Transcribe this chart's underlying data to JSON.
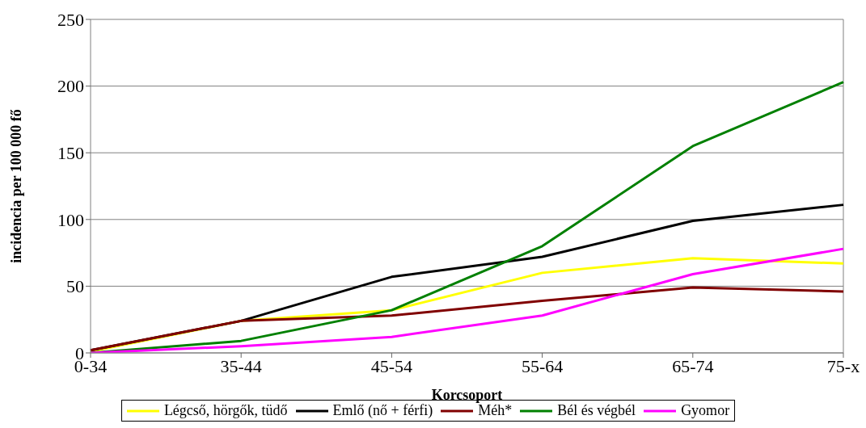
{
  "chart_data": {
    "type": "line",
    "xlabel": "Korcsoport",
    "ylabel": "incidencia per 100 000 fő",
    "categories": [
      "0-34",
      "35-44",
      "45-54",
      "55-64",
      "65-74",
      "75-x"
    ],
    "ylim": [
      0,
      250
    ],
    "yticks": [
      0,
      50,
      100,
      150,
      200,
      250
    ],
    "grid": "y",
    "legend": "bottom",
    "marker": "none",
    "line_style": "solid",
    "series": [
      {
        "name": "Légcső, hörgők, tüdő",
        "color": "#ffff00",
        "values": [
          1,
          24,
          32,
          60,
          71,
          67
        ]
      },
      {
        "name": "Emlő (nő + férfi)",
        "color": "#000000",
        "values": [
          2,
          24,
          57,
          72,
          99,
          111
        ]
      },
      {
        "name": "Méh*",
        "color": "#800000",
        "values": [
          2,
          24,
          28,
          39,
          49,
          46
        ]
      },
      {
        "name": "Bél és végbél",
        "color": "#008000",
        "values": [
          0,
          9,
          32,
          80,
          155,
          203
        ]
      },
      {
        "name": "Gyomor",
        "color": "#ff00ff",
        "values": [
          0,
          5,
          12,
          28,
          59,
          78
        ]
      }
    ]
  }
}
